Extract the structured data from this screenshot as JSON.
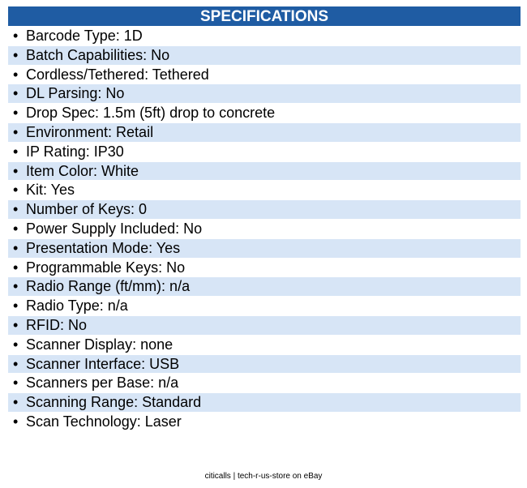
{
  "header": {
    "title": "SPECIFICATIONS"
  },
  "items": [
    "Barcode Type: 1D",
    "Batch Capabilities: No",
    "Cordless/Tethered: Tethered",
    "DL Parsing: No",
    "Drop Spec: 1.5m (5ft) drop to concrete",
    "Environment: Retail",
    "IP Rating: IP30",
    "Item Color: White",
    "Kit: Yes",
    "Number of Keys: 0",
    "Power Supply Included: No",
    "Presentation Mode: Yes",
    "Programmable Keys: No",
    "Radio Range (ft/mm): n/a",
    "Radio Type: n/a",
    "RFID: No",
    "Scanner Display: none",
    "Scanner Interface: USB",
    "Scanners per Base: n/a",
    "Scanning Range: Standard",
    "Scan Technology: Laser"
  ],
  "footer": {
    "text": "citicalls | tech-r-us-store on eBay"
  }
}
